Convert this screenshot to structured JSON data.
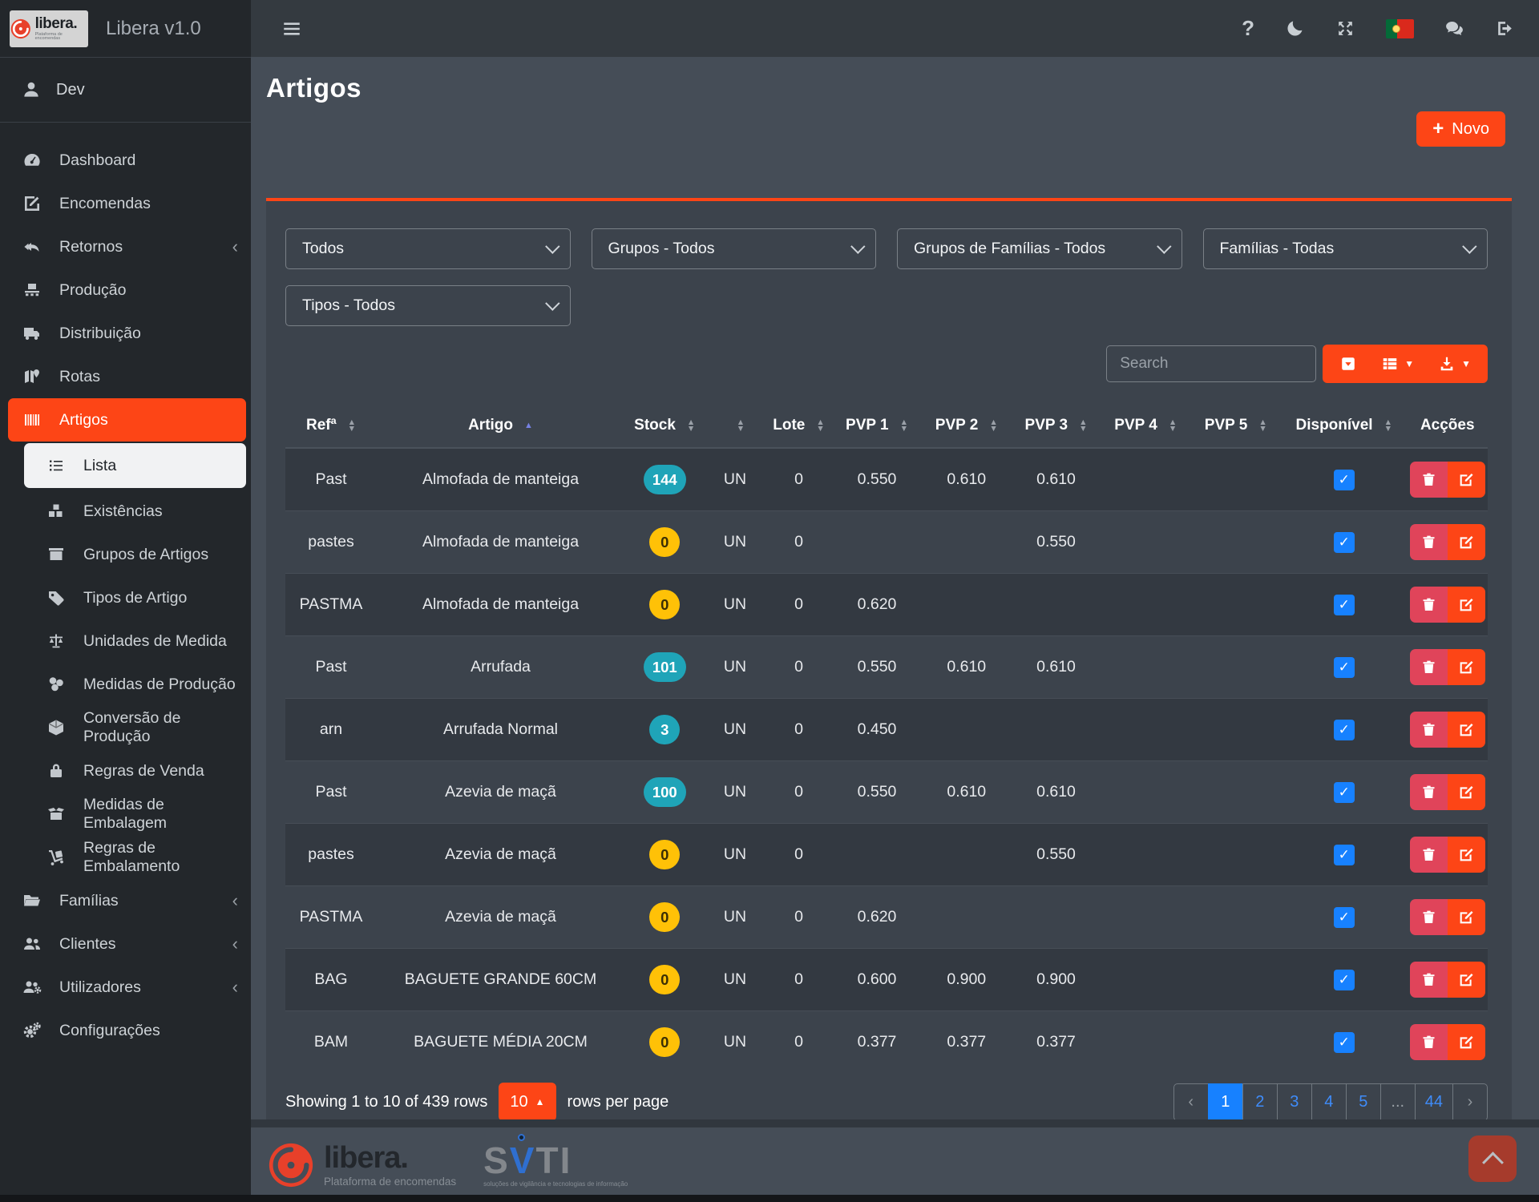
{
  "brand": {
    "logo_text": "libera.",
    "logo_tagline": "Plataforma de encomendas",
    "app_title": "Libera v1.0"
  },
  "user": {
    "name": "Dev"
  },
  "topbar": {
    "icons": [
      {
        "name": "help-icon",
        "icon": "question"
      },
      {
        "name": "dark-mode-icon",
        "icon": "moon"
      },
      {
        "name": "fullscreen-icon",
        "icon": "expand"
      },
      {
        "name": "language-flag-pt-icon",
        "icon": "flag"
      },
      {
        "name": "messages-icon",
        "icon": "comments"
      },
      {
        "name": "logout-icon",
        "icon": "signout"
      }
    ]
  },
  "sidebar": {
    "items": [
      {
        "label": "Dashboard",
        "icon": "tachometer",
        "type": "main"
      },
      {
        "label": "Encomendas",
        "icon": "pensquare",
        "type": "main"
      },
      {
        "label": "Retornos",
        "icon": "reply",
        "type": "main",
        "chevron": true
      },
      {
        "label": "Produção",
        "icon": "pallet",
        "type": "main"
      },
      {
        "label": "Distribuição",
        "icon": "truck",
        "type": "main"
      },
      {
        "label": "Rotas",
        "icon": "map",
        "type": "main"
      },
      {
        "label": "Artigos",
        "icon": "barcode",
        "type": "main",
        "active": true
      },
      {
        "label": "Lista",
        "icon": "list",
        "type": "sub",
        "active": true
      },
      {
        "label": "Existências",
        "icon": "boxes",
        "type": "sub"
      },
      {
        "label": "Grupos de Artigos",
        "icon": "box",
        "type": "sub"
      },
      {
        "label": "Tipos de Artigo",
        "icon": "tag",
        "type": "sub"
      },
      {
        "label": "Unidades de Medida",
        "icon": "balance",
        "type": "sub"
      },
      {
        "label": "Medidas de Produção",
        "icon": "dice",
        "type": "sub"
      },
      {
        "label": "Conversão de Produção",
        "icon": "cube",
        "type": "sub"
      },
      {
        "label": "Regras de Venda",
        "icon": "lock",
        "type": "sub"
      },
      {
        "label": "Medidas de Embalagem",
        "icon": "boxopen",
        "type": "sub"
      },
      {
        "label": "Regras de Embalamento",
        "icon": "dolly",
        "type": "sub"
      },
      {
        "label": "Famílias",
        "icon": "folder",
        "type": "main",
        "chevron": true
      },
      {
        "label": "Clientes",
        "icon": "users",
        "type": "main",
        "chevron": true
      },
      {
        "label": "Utilizadores",
        "icon": "usersgear",
        "type": "main",
        "chevron": true
      },
      {
        "label": "Configurações",
        "icon": "gears",
        "type": "main"
      }
    ]
  },
  "page": {
    "title": "Artigos",
    "new_button_label": "Novo"
  },
  "filters": {
    "selects": [
      {
        "name": "filter-all",
        "value": "Todos",
        "row": 1
      },
      {
        "name": "filter-grupos",
        "value": "Grupos - Todos",
        "row": 1
      },
      {
        "name": "filter-grupos-familias",
        "value": "Grupos de Famílias - Todos",
        "row": 1
      },
      {
        "name": "filter-familias",
        "value": "Famílias - Todas",
        "row": 1
      },
      {
        "name": "filter-tipos",
        "value": "Tipos - Todos",
        "row": 2
      }
    ]
  },
  "toolbar": {
    "search_placeholder": "Search",
    "buttons": [
      {
        "name": "toggle-pagination-button",
        "icon": "caretsq",
        "caret": false
      },
      {
        "name": "columns-button",
        "icon": "thlist",
        "caret": true
      },
      {
        "name": "export-button",
        "icon": "download",
        "caret": true
      }
    ]
  },
  "table": {
    "columns": [
      {
        "label": "Refª",
        "sortable": true
      },
      {
        "label": "Artigo",
        "sortable": true,
        "sorted": "asc"
      },
      {
        "label": "Stock",
        "sortable": true
      },
      {
        "label": "",
        "sortable": true
      },
      {
        "label": "Lote",
        "sortable": true
      },
      {
        "label": "PVP 1",
        "sortable": true
      },
      {
        "label": "PVP 2",
        "sortable": true
      },
      {
        "label": "PVP 3",
        "sortable": true
      },
      {
        "label": "PVP 4",
        "sortable": true
      },
      {
        "label": "PVP 5",
        "sortable": true
      },
      {
        "label": "Disponível",
        "sortable": true
      },
      {
        "label": "Acções",
        "sortable": false
      }
    ],
    "rows": [
      {
        "ref": "Past",
        "artigo": "Almofada de manteiga",
        "stock": "144",
        "stock_variant": "info",
        "unit": "UN",
        "lote": "0",
        "pvp1": "0.550",
        "pvp2": "0.610",
        "pvp3": "0.610",
        "pvp4": "",
        "pvp5": "",
        "disponivel": true
      },
      {
        "ref": "pastes",
        "artigo": "Almofada de manteiga",
        "stock": "0",
        "stock_variant": "warning",
        "unit": "UN",
        "lote": "0",
        "pvp1": "",
        "pvp2": "",
        "pvp3": "0.550",
        "pvp4": "",
        "pvp5": "",
        "disponivel": true
      },
      {
        "ref": "PASTMA",
        "artigo": "Almofada de manteiga",
        "stock": "0",
        "stock_variant": "warning",
        "unit": "UN",
        "lote": "0",
        "pvp1": "0.620",
        "pvp2": "",
        "pvp3": "",
        "pvp4": "",
        "pvp5": "",
        "disponivel": true
      },
      {
        "ref": "Past",
        "artigo": "Arrufada",
        "stock": "101",
        "stock_variant": "info",
        "unit": "UN",
        "lote": "0",
        "pvp1": "0.550",
        "pvp2": "0.610",
        "pvp3": "0.610",
        "pvp4": "",
        "pvp5": "",
        "disponivel": true
      },
      {
        "ref": "arn",
        "artigo": "Arrufada Normal",
        "stock": "3",
        "stock_variant": "info",
        "unit": "UN",
        "lote": "0",
        "pvp1": "0.450",
        "pvp2": "",
        "pvp3": "",
        "pvp4": "",
        "pvp5": "",
        "disponivel": true
      },
      {
        "ref": "Past",
        "artigo": "Azevia de maçã",
        "stock": "100",
        "stock_variant": "info",
        "unit": "UN",
        "lote": "0",
        "pvp1": "0.550",
        "pvp2": "0.610",
        "pvp3": "0.610",
        "pvp4": "",
        "pvp5": "",
        "disponivel": true
      },
      {
        "ref": "pastes",
        "artigo": "Azevia de maçã",
        "stock": "0",
        "stock_variant": "warning",
        "unit": "UN",
        "lote": "0",
        "pvp1": "",
        "pvp2": "",
        "pvp3": "0.550",
        "pvp4": "",
        "pvp5": "",
        "disponivel": true
      },
      {
        "ref": "PASTMA",
        "artigo": "Azevia de maçã",
        "stock": "0",
        "stock_variant": "warning",
        "unit": "UN",
        "lote": "0",
        "pvp1": "0.620",
        "pvp2": "",
        "pvp3": "",
        "pvp4": "",
        "pvp5": "",
        "disponivel": true
      },
      {
        "ref": "BAG",
        "artigo": "BAGUETE GRANDE 60CM",
        "stock": "0",
        "stock_variant": "warning",
        "unit": "UN",
        "lote": "0",
        "pvp1": "0.600",
        "pvp2": "0.900",
        "pvp3": "0.900",
        "pvp4": "",
        "pvp5": "",
        "disponivel": true
      },
      {
        "ref": "BAM",
        "artigo": "BAGUETE MÉDIA 20CM",
        "stock": "0",
        "stock_variant": "warning",
        "unit": "UN",
        "lote": "0",
        "pvp1": "0.377",
        "pvp2": "0.377",
        "pvp3": "0.377",
        "pvp4": "",
        "pvp5": "",
        "disponivel": true
      }
    ]
  },
  "pagination": {
    "summary": "Showing 1 to 10 of 439 rows",
    "rows_per_page": "10",
    "rows_per_page_suffix": "rows per page",
    "pages": [
      {
        "label": "‹",
        "kind": "nav"
      },
      {
        "label": "1",
        "kind": "page",
        "active": true
      },
      {
        "label": "2",
        "kind": "page"
      },
      {
        "label": "3",
        "kind": "page"
      },
      {
        "label": "4",
        "kind": "page"
      },
      {
        "label": "5",
        "kind": "page"
      },
      {
        "label": "...",
        "kind": "ellipsis"
      },
      {
        "label": "44",
        "kind": "page"
      },
      {
        "label": "›",
        "kind": "nav"
      }
    ]
  },
  "footer": {
    "libera_text": "libera.",
    "libera_tagline": "Plataforma de encomendas",
    "svti_letters": [
      "S",
      "V",
      "T",
      "I"
    ],
    "svti_tagline": "soluções de vigilância e tecnologias de informação"
  },
  "colors": {
    "accent": "#fd4516",
    "badge_info": "#1fa4b8",
    "badge_warning": "#ffc107",
    "check_blue": "#1781ff",
    "danger": "#e0445a"
  }
}
